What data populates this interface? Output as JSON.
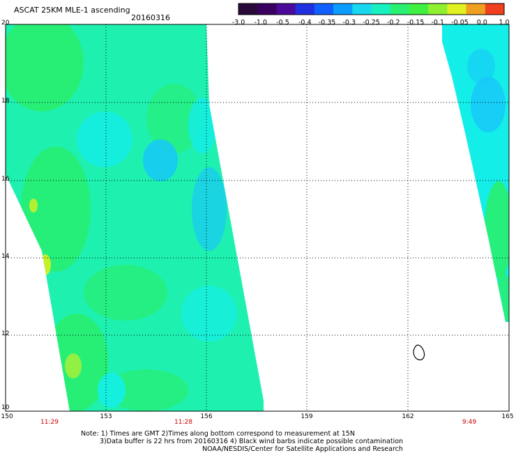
{
  "header": {
    "title": "ASCAT 25KM MLE-1 ascending",
    "date": "20160316"
  },
  "colorbar": {
    "ticks": [
      "-3.0",
      "-1.0",
      "-0.5",
      "-0.4",
      "-0.35",
      "-0.3",
      "-0.25",
      "-0.2",
      "-0.15",
      "-0.1",
      "-0.05",
      "0.0",
      "1.0"
    ],
    "colors": [
      "#2a0a3a",
      "#3a0060",
      "#4b0a9a",
      "#2030e0",
      "#1060ff",
      "#0a9cff",
      "#18d8f0",
      "#18f0c0",
      "#28f070",
      "#40f040",
      "#90f030",
      "#e0f020",
      "#f0a020",
      "#f04020"
    ]
  },
  "map": {
    "lat_labels": [
      "20",
      "18",
      "16",
      "14",
      "12",
      "10"
    ],
    "lon_labels": [
      "150",
      "153",
      "156",
      "159",
      "162",
      "165"
    ],
    "pass_times": [
      "11:29",
      "11:28",
      "9:49"
    ]
  },
  "note": {
    "line1": "Note: 1) Times are GMT 2)Times along bottom correspond to measurement at 15N",
    "line2": "3)Data buffer is 22 hrs from 20160316 4) Black wind barbs indicate possible contamination",
    "line3": "NOAA/NESDIS/Center for Satellite Applications and Research"
  },
  "swath_colors": {
    "base": "#1ef0b0",
    "green": "#28ee70",
    "cyan": "#14eee8",
    "blue": "#18c8f8",
    "yellow": "#d8f020"
  }
}
